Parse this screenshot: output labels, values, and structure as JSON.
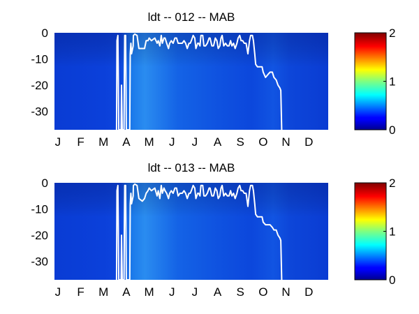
{
  "chart_data": [
    {
      "type": "heatmap",
      "title": "ldt -- 012 -- MAB",
      "xlabel": "",
      "ylabel": "",
      "x_tick_labels": [
        "J",
        "F",
        "M",
        "A",
        "M",
        "J",
        "J",
        "A",
        "S",
        "O",
        "N",
        "D"
      ],
      "y_tick_labels": [
        "0",
        "-10",
        "-20",
        "-30"
      ],
      "ylim": [
        -37,
        0
      ],
      "x_range_months": [
        0,
        12
      ],
      "colorbar": {
        "colormap": "jet",
        "range": [
          0,
          2
        ],
        "tick_labels": [
          "2",
          "1",
          "0"
        ]
      },
      "colors": {
        "background_field": "#0a3fd8",
        "contour": "#ffffff"
      },
      "contour_line": {
        "color": "white",
        "points": [
          [
            2.72,
            -37
          ],
          [
            2.74,
            -3
          ],
          [
            2.78,
            -1
          ],
          [
            2.82,
            -37
          ],
          [
            2.92,
            -37
          ],
          [
            2.94,
            -20
          ],
          [
            2.97,
            -37
          ],
          [
            3.05,
            -37
          ],
          [
            3.06,
            -20
          ],
          [
            3.08,
            -1
          ],
          [
            3.12,
            -1
          ],
          [
            3.15,
            -37
          ],
          [
            3.3,
            -37
          ],
          [
            3.32,
            -8
          ],
          [
            3.35,
            -4
          ],
          [
            3.38,
            -8
          ],
          [
            3.45,
            -5
          ],
          [
            3.46,
            -1
          ],
          [
            3.52,
            -0.5
          ],
          [
            3.62,
            -1
          ],
          [
            3.7,
            -6
          ],
          [
            3.85,
            -6
          ],
          [
            3.95,
            -6
          ],
          [
            4.02,
            -3
          ],
          [
            4.1,
            -3
          ],
          [
            4.15,
            -2
          ],
          [
            4.25,
            -3
          ],
          [
            4.4,
            -2
          ],
          [
            4.5,
            -4
          ],
          [
            4.55,
            -3
          ],
          [
            4.62,
            -5
          ],
          [
            4.68,
            -1
          ],
          [
            4.73,
            -4
          ],
          [
            4.8,
            -2
          ],
          [
            4.85,
            -2
          ],
          [
            4.92,
            -4
          ],
          [
            5.0,
            -6
          ],
          [
            5.05,
            -4
          ],
          [
            5.12,
            -3
          ],
          [
            5.2,
            -4
          ],
          [
            5.28,
            -2
          ],
          [
            5.35,
            -2
          ],
          [
            5.42,
            -4
          ],
          [
            5.5,
            -4
          ],
          [
            5.55,
            -4
          ],
          [
            5.6,
            -4
          ],
          [
            5.68,
            -3
          ],
          [
            5.75,
            -4
          ],
          [
            5.82,
            -6
          ],
          [
            5.9,
            -4
          ],
          [
            5.95,
            -4
          ],
          [
            6.0,
            -3
          ],
          [
            6.08,
            -1
          ],
          [
            6.15,
            -2
          ],
          [
            6.2,
            -6
          ],
          [
            6.28,
            -4
          ],
          [
            6.32,
            -4
          ],
          [
            6.38,
            -5
          ],
          [
            6.42,
            -1
          ],
          [
            6.5,
            -1
          ],
          [
            6.55,
            -5
          ],
          [
            6.62,
            -5
          ],
          [
            6.7,
            -4
          ],
          [
            6.78,
            -2
          ],
          [
            6.82,
            -2
          ],
          [
            6.9,
            -5
          ],
          [
            6.97,
            -5
          ],
          [
            7.0,
            -4
          ],
          [
            7.05,
            -2
          ],
          [
            7.12,
            -3
          ],
          [
            7.18,
            -6
          ],
          [
            7.25,
            -5
          ],
          [
            7.3,
            -2
          ],
          [
            7.35,
            -1
          ],
          [
            7.42,
            -5
          ],
          [
            7.5,
            -4
          ],
          [
            7.58,
            -5
          ],
          [
            7.65,
            -5
          ],
          [
            7.72,
            -3
          ],
          [
            7.78,
            -5
          ],
          [
            7.85,
            -4
          ],
          [
            7.92,
            -6
          ],
          [
            8.0,
            -4
          ],
          [
            8.05,
            -2
          ],
          [
            8.12,
            -1
          ],
          [
            8.18,
            -3
          ],
          [
            8.25,
            -3
          ],
          [
            8.32,
            -4
          ],
          [
            8.4,
            -4
          ],
          [
            8.48,
            -8
          ],
          [
            8.55,
            -3
          ],
          [
            8.6,
            -1
          ],
          [
            8.68,
            -1
          ],
          [
            8.72,
            -3
          ],
          [
            8.78,
            -8
          ],
          [
            8.82,
            -12
          ],
          [
            8.9,
            -13
          ],
          [
            9.0,
            -13
          ],
          [
            9.1,
            -13
          ],
          [
            9.15,
            -15
          ],
          [
            9.25,
            -17
          ],
          [
            9.35,
            -16
          ],
          [
            9.45,
            -15
          ],
          [
            9.55,
            -15
          ],
          [
            9.62,
            -17
          ],
          [
            9.72,
            -18
          ],
          [
            9.8,
            -20
          ],
          [
            9.88,
            -21
          ],
          [
            9.92,
            -22
          ],
          [
            9.96,
            -37
          ]
        ]
      }
    },
    {
      "type": "heatmap",
      "title": "ldt -- 013 -- MAB",
      "xlabel": "",
      "ylabel": "",
      "x_tick_labels": [
        "J",
        "F",
        "M",
        "A",
        "M",
        "J",
        "J",
        "A",
        "S",
        "O",
        "N",
        "D"
      ],
      "y_tick_labels": [
        "0",
        "-10",
        "-20",
        "-30"
      ],
      "ylim": [
        -37,
        0
      ],
      "x_range_months": [
        0,
        12
      ],
      "colorbar": {
        "colormap": "jet",
        "range": [
          0,
          2
        ],
        "tick_labels": [
          "2",
          "1",
          "0"
        ]
      },
      "colors": {
        "background_field": "#0a3fd8",
        "contour": "#ffffff"
      },
      "contour_line": {
        "color": "white",
        "points": [
          [
            2.72,
            -37
          ],
          [
            2.74,
            -3
          ],
          [
            2.78,
            -1
          ],
          [
            2.82,
            -37
          ],
          [
            2.92,
            -37
          ],
          [
            2.94,
            -20
          ],
          [
            2.97,
            -37
          ],
          [
            3.05,
            -37
          ],
          [
            3.06,
            -20
          ],
          [
            3.08,
            -1
          ],
          [
            3.12,
            -1
          ],
          [
            3.15,
            -37
          ],
          [
            3.3,
            -37
          ],
          [
            3.32,
            -8
          ],
          [
            3.35,
            -4
          ],
          [
            3.38,
            -8
          ],
          [
            3.45,
            -5
          ],
          [
            3.46,
            -1
          ],
          [
            3.52,
            -0.5
          ],
          [
            3.62,
            -1
          ],
          [
            3.7,
            -6
          ],
          [
            3.85,
            -7
          ],
          [
            3.95,
            -6
          ],
          [
            4.02,
            -4
          ],
          [
            4.1,
            -3
          ],
          [
            4.15,
            -2
          ],
          [
            4.25,
            -3
          ],
          [
            4.4,
            -2
          ],
          [
            4.5,
            -5
          ],
          [
            4.55,
            -3
          ],
          [
            4.62,
            -6
          ],
          [
            4.68,
            -1
          ],
          [
            4.73,
            -4
          ],
          [
            4.8,
            -2
          ],
          [
            4.85,
            -3
          ],
          [
            4.92,
            -4
          ],
          [
            5.0,
            -6
          ],
          [
            5.05,
            -4
          ],
          [
            5.12,
            -3
          ],
          [
            5.2,
            -4
          ],
          [
            5.28,
            -2
          ],
          [
            5.35,
            -2
          ],
          [
            5.42,
            -5
          ],
          [
            5.5,
            -4
          ],
          [
            5.55,
            -4
          ],
          [
            5.6,
            -4
          ],
          [
            5.68,
            -3
          ],
          [
            5.75,
            -4
          ],
          [
            5.82,
            -6
          ],
          [
            5.9,
            -4
          ],
          [
            5.95,
            -4
          ],
          [
            6.0,
            -3
          ],
          [
            6.08,
            -1
          ],
          [
            6.15,
            -2
          ],
          [
            6.2,
            -6
          ],
          [
            6.28,
            -4
          ],
          [
            6.32,
            -4
          ],
          [
            6.38,
            -5
          ],
          [
            6.42,
            -1
          ],
          [
            6.5,
            -1
          ],
          [
            6.55,
            -5
          ],
          [
            6.62,
            -5
          ],
          [
            6.7,
            -4
          ],
          [
            6.78,
            -2
          ],
          [
            6.82,
            -2
          ],
          [
            6.9,
            -5
          ],
          [
            6.97,
            -5
          ],
          [
            7.0,
            -4
          ],
          [
            7.05,
            -2
          ],
          [
            7.12,
            -3
          ],
          [
            7.18,
            -6
          ],
          [
            7.25,
            -5
          ],
          [
            7.3,
            -2
          ],
          [
            7.35,
            -1
          ],
          [
            7.42,
            -5
          ],
          [
            7.5,
            -4
          ],
          [
            7.58,
            -5
          ],
          [
            7.65,
            -5
          ],
          [
            7.72,
            -3
          ],
          [
            7.78,
            -5
          ],
          [
            7.85,
            -4
          ],
          [
            7.92,
            -6
          ],
          [
            8.0,
            -4
          ],
          [
            8.05,
            -2
          ],
          [
            8.12,
            -1
          ],
          [
            8.18,
            -3
          ],
          [
            8.25,
            -3
          ],
          [
            8.32,
            -4
          ],
          [
            8.4,
            -4
          ],
          [
            8.48,
            -9
          ],
          [
            8.55,
            -3
          ],
          [
            8.6,
            -1
          ],
          [
            8.68,
            -1
          ],
          [
            8.72,
            -3
          ],
          [
            8.78,
            -8
          ],
          [
            8.82,
            -12
          ],
          [
            8.9,
            -13
          ],
          [
            9.0,
            -13
          ],
          [
            9.1,
            -13
          ],
          [
            9.15,
            -15
          ],
          [
            9.25,
            -16
          ],
          [
            9.35,
            -16
          ],
          [
            9.45,
            -16
          ],
          [
            9.55,
            -17
          ],
          [
            9.62,
            -18
          ],
          [
            9.72,
            -18
          ],
          [
            9.8,
            -20
          ],
          [
            9.88,
            -21
          ],
          [
            9.92,
            -22
          ],
          [
            9.96,
            -37
          ]
        ]
      }
    }
  ]
}
